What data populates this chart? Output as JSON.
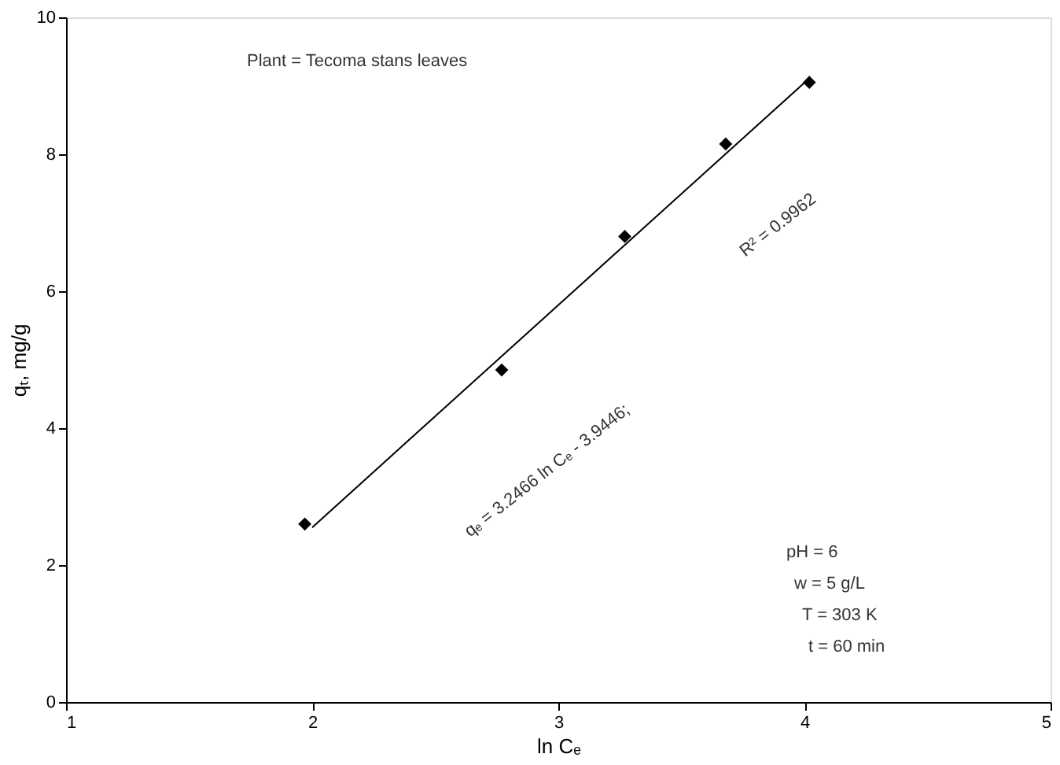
{
  "chart_data": {
    "type": "scatter",
    "xlabel": "ln Cₑ",
    "ylabel": "qₜ, mg/g",
    "xlim": [
      1,
      5
    ],
    "xticks": [
      1,
      2,
      3,
      4,
      5
    ],
    "ylim": [
      0,
      10
    ],
    "yticks": [
      0,
      2,
      4,
      6,
      8,
      10
    ],
    "grid": false,
    "series": [
      {
        "type": "scatter",
        "marker": "diamond",
        "color": "#000000",
        "x": [
          1.97,
          2.77,
          3.27,
          3.68,
          4.02
        ],
        "values": [
          2.6,
          4.85,
          6.8,
          8.15,
          9.05
        ]
      },
      {
        "type": "line",
        "color": "#000000",
        "line_style": "solid",
        "x": [
          2.0,
          4.02
        ],
        "values": [
          2.55,
          9.11
        ]
      }
    ],
    "annotations": [
      "Plant = Tecoma stans leaves",
      "qₑ = 3.2466 ln Cₑ - 3.9446;",
      "R² = 0.9962",
      "pH = 6",
      "w = 5 g/L",
      "T = 303 K",
      "t = 60 min"
    ]
  }
}
